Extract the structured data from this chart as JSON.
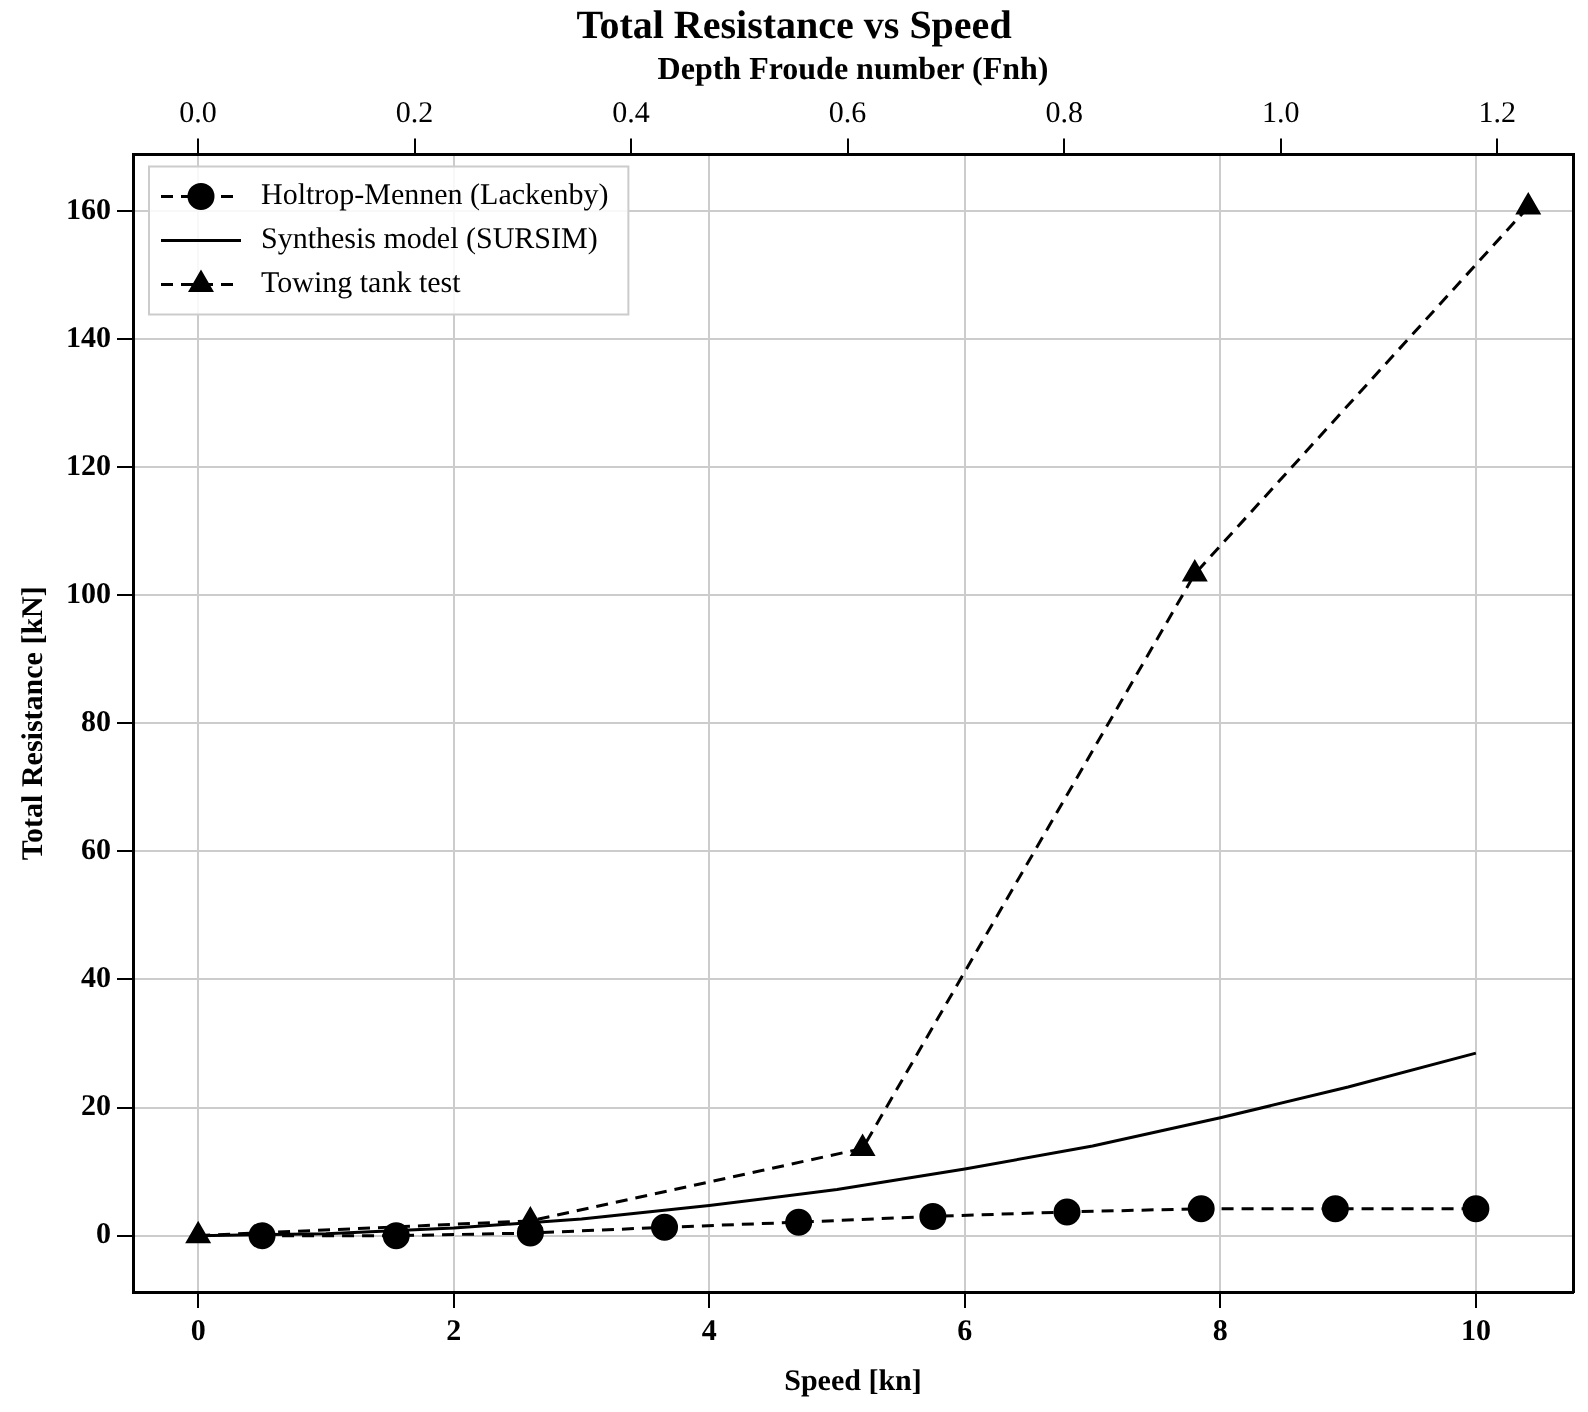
{
  "chart_data": {
    "type": "line",
    "title": "Total Resistance vs Speed",
    "xlabel": "Speed [kn]",
    "ylabel": "Total Resistance [kN]",
    "x2label": "Depth Froude number (Fnh)",
    "xlim": [
      -0.51,
      10.76
    ],
    "xticks": [
      0,
      2,
      4,
      6,
      8,
      10
    ],
    "x2lim": [
      -0.06,
      1.27
    ],
    "x2ticks": [
      {
        "value": 0,
        "label": "0.0"
      },
      {
        "value": 0.2,
        "label": "0.2"
      },
      {
        "value": 0.4,
        "label": "0.4"
      },
      {
        "value": 0.6,
        "label": "0.6"
      },
      {
        "value": 0.8,
        "label": "0.8"
      },
      {
        "value": 1.0,
        "label": "1.0"
      },
      {
        "value": 1.2,
        "label": "1.2"
      }
    ],
    "ylim": [
      -8.8,
      168.8
    ],
    "yticks": [
      0,
      20,
      40,
      60,
      80,
      100,
      120,
      140,
      160
    ],
    "grid": true,
    "legend": "top left",
    "series": [
      {
        "name": "Holtrop-Mennen (Lackenby)",
        "color": "#000000",
        "marker": "circle",
        "line_style": "dashed",
        "x": [
          0.5,
          1.55,
          2.6,
          3.65,
          4.7,
          5.75,
          6.8,
          7.85,
          8.9,
          10
        ],
        "values": [
          0,
          0,
          0.4,
          1.3,
          2.1,
          3.0,
          3.7,
          4.2,
          4.2,
          4.2
        ]
      },
      {
        "name": "Synthesis model (SURSIM)",
        "color": "#000000",
        "marker": "none",
        "line_style": "solid",
        "x": [
          0,
          1,
          2,
          3,
          4,
          5,
          6,
          7,
          8,
          9,
          10
        ],
        "values": [
          0,
          0.3,
          1.2,
          2.6,
          4.7,
          7.2,
          10.4,
          14.0,
          18.4,
          23.2,
          28.5
        ]
      },
      {
        "name": "Towing tank test",
        "color": "#000000",
        "marker": "triangle",
        "line_style": "dashed",
        "x": [
          0,
          2.6,
          5.2,
          7.8,
          10.41
        ],
        "values": [
          0,
          2.3,
          13.6,
          103.3,
          160.6
        ]
      }
    ]
  }
}
